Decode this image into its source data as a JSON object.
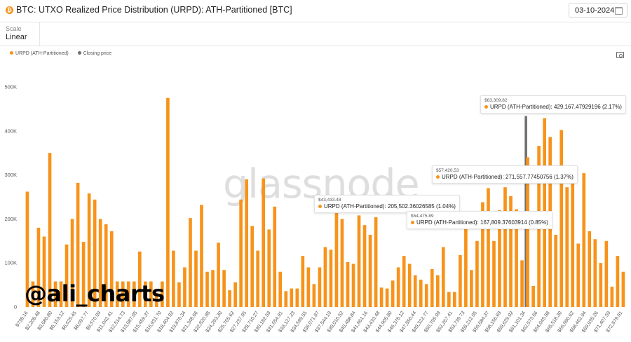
{
  "header": {
    "coin_symbol": "₿",
    "title": "BTC: UTXO Realized Price Distribution (URPD): ATH-Partitioned [BTC]",
    "date": "03-10-2024"
  },
  "scale": {
    "label": "Scale",
    "value": "Linear"
  },
  "legend": [
    {
      "label": "URPD (ATH-Partitioned)",
      "color": "#f7931a"
    },
    {
      "label": "Closing price",
      "color": "#707070"
    }
  ],
  "watermark": "glassnode",
  "handle": "@ali_charts",
  "tooltips": [
    {
      "date": "$63,309.82",
      "series": "URPD (ATH-Partitioned):",
      "value": "429,167.47929196 (2.17%)"
    },
    {
      "date": "$57,420.53",
      "series": "URPD (ATH-Partitioned):",
      "value": "271,557.77450756 (1.37%)"
    },
    {
      "date": "$43,433.48",
      "series": "URPD (ATH-Partitioned):",
      "value": "205,502.36026585 (1.04%)"
    },
    {
      "date": "$54,475.89",
      "series": "URPD (ATH-Partitioned):",
      "value": "167,809.37603914 (0.85%)"
    }
  ],
  "chart_data": {
    "type": "bar",
    "title": "BTC: UTXO Realized Price Distribution (URPD): ATH-Partitioned [BTC]",
    "series_name": "URPD (ATH-Partitioned)",
    "bar_color": "#f7931a",
    "closing_price_color": "#707070",
    "closing_price": 61101.34,
    "y_ticks": [
      "0",
      "100K",
      "200K",
      "300K",
      "400K",
      "500K"
    ],
    "ylim": [
      0,
      500000
    ],
    "x_tick_labels": [
      "$738.16",
      "$2,208.48",
      "$3,680.80",
      "$5,153.12",
      "$6,625.45",
      "$8,097.77",
      "$9,570.09",
      "$11,042.41",
      "$12,514.73",
      "$13,987.05",
      "$15,459.37",
      "$16,931.70",
      "$18,404.02",
      "$19,876.34",
      "$21,348.66",
      "$22,820.98",
      "$24,293.30",
      "$25,765.62",
      "$27,237.95",
      "$28,710.27",
      "$30,182.59",
      "$31,654.91",
      "$33,127.23",
      "$34,599.55",
      "$36,071.87",
      "$37,544.19",
      "$39,016.52",
      "$40,488.84",
      "$41,961.16",
      "$43,433.48",
      "$44,905.80",
      "$46,378.12",
      "$47,850.44",
      "$49,322.77",
      "$50,795.09",
      "$52,267.41",
      "$53,739.73",
      "$55,212.05",
      "$56,684.37",
      "$58,156.69",
      "$59,629.02",
      "$61,101.34",
      "$62,573.66",
      "$64,045.98",
      "$65,518.30",
      "$66,990.62",
      "$68,462.94",
      "$69,935.26",
      "$71,407.59",
      "$72,879.91"
    ],
    "values": [
      262000,
      58000,
      180000,
      160000,
      350000,
      58000,
      58000,
      142000,
      200000,
      282000,
      148000,
      258000,
      244000,
      200000,
      188000,
      172000,
      58000,
      58000,
      58000,
      58000,
      126000,
      58000,
      58000,
      32000,
      58000,
      475000,
      128000,
      56000,
      90000,
      202000,
      128000,
      232000,
      80000,
      84000,
      146000,
      84000,
      38000,
      56000,
      244000,
      290000,
      184000,
      128000,
      292000,
      176000,
      228000,
      80000,
      36000,
      42000,
      42000,
      116000,
      90000,
      52000,
      90000,
      136000,
      130000,
      218000,
      200000,
      102000,
      98000,
      208000,
      186000,
      164000,
      204000,
      44000,
      42000,
      60000,
      90000,
      116000,
      98000,
      72000,
      62000,
      52000,
      86000,
      72000,
      136000,
      34000,
      34000,
      118000,
      180000,
      84000,
      150000,
      238000,
      270000,
      150000,
      220000,
      272000,
      252000,
      222000,
      106000,
      340000,
      48000,
      366000,
      429000,
      386000,
      164000,
      402000,
      272000,
      308000,
      144000,
      304000,
      172000,
      154000,
      100000,
      150000,
      46000,
      116000,
      80000
    ]
  }
}
